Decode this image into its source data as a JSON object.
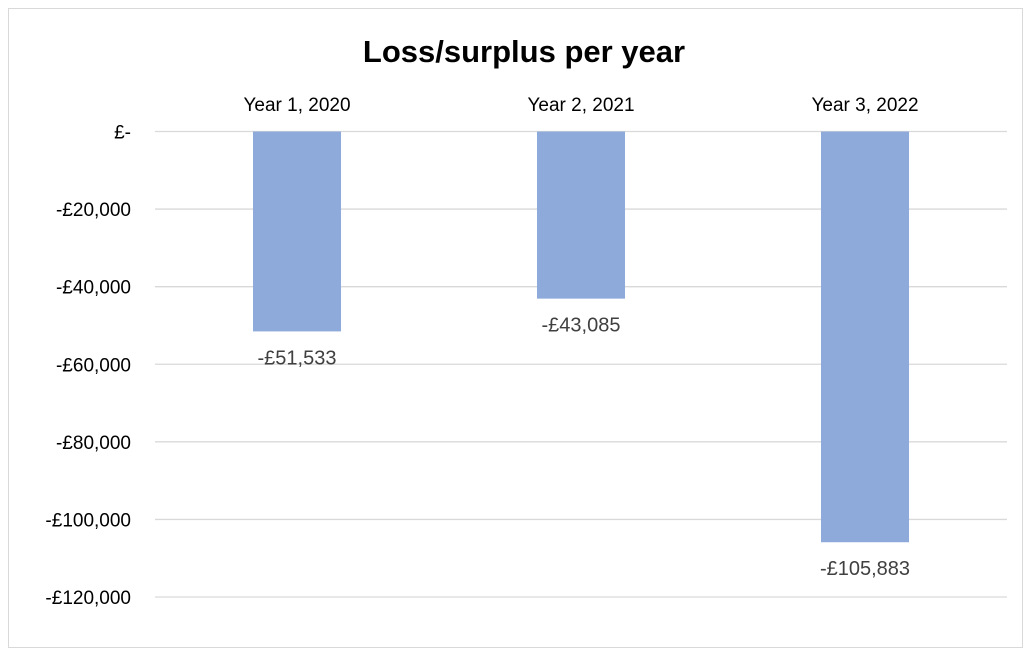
{
  "chart_data": {
    "type": "bar",
    "title": "Loss/surplus per year",
    "categories": [
      "Year 1, 2020",
      "Year 2, 2021",
      "Year 3, 2022"
    ],
    "values": [
      -51533,
      -43085,
      -105883
    ],
    "data_labels": [
      "-£51,533",
      "-£43,085",
      "-£105,883"
    ],
    "ylim": [
      -120000,
      0
    ],
    "yticks": [
      0,
      -20000,
      -40000,
      -60000,
      -80000,
      -100000,
      -120000
    ],
    "ytick_labels": [
      "£-",
      "-£20,000",
      "-£40,000",
      "-£60,000",
      "-£80,000",
      "-£100,000",
      "-£120,000"
    ],
    "category_axis_position": "top",
    "grid": true,
    "bar_color": "#8eaadb"
  }
}
